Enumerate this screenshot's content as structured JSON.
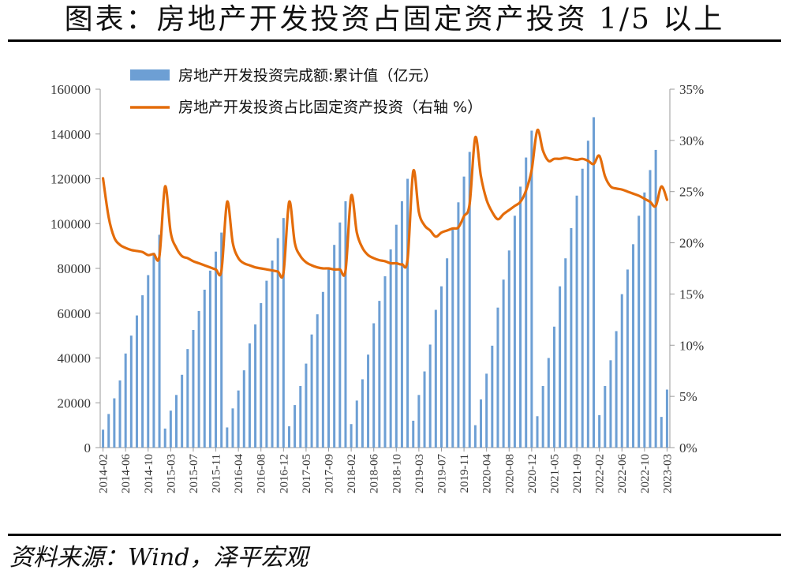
{
  "header": {
    "title": "图表：房地产开发投资占固定资产投资 1/5 以上"
  },
  "footer": {
    "source": "资料来源：Wind，泽平宏观"
  },
  "colors": {
    "bar": "#6d9fd4",
    "line": "#e46c0a",
    "rule": "#000000"
  },
  "chart_data": {
    "type": "bar",
    "legend": [
      "房地产开发投资完成额:累计值（亿元）",
      "房地产开发投资占比固定资产投资（右轴 %）"
    ],
    "legend_position": "top",
    "x_tick_labels": [
      "2014-02",
      "2014-06",
      "2014-10",
      "2015-03",
      "2015-07",
      "2015-11",
      "2016-04",
      "2016-08",
      "2016-12",
      "2017-05",
      "2017-09",
      "2018-02",
      "2018-06",
      "2018-10",
      "2019-03",
      "2019-07",
      "2019-11",
      "2020-04",
      "2020-08",
      "2020-12",
      "2021-05",
      "2021-09",
      "2022-02",
      "2022-06",
      "2022-10",
      "2023-03"
    ],
    "y_left": {
      "ylim": [
        0,
        160000
      ],
      "ticks": [
        "0",
        "20000",
        "40000",
        "60000",
        "80000",
        "100000",
        "120000",
        "140000",
        "160000"
      ]
    },
    "y_right": {
      "ylim": [
        0,
        35
      ],
      "ticks": [
        "0%",
        "5%",
        "10%",
        "15%",
        "20%",
        "25%",
        "30%",
        "35%"
      ]
    },
    "years": [
      {
        "year": "2014",
        "months": [
          2,
          3,
          4,
          5,
          6,
          7,
          8,
          9,
          10,
          11,
          12
        ],
        "bars": [
          8000,
          15000,
          22000,
          30000,
          42000,
          50000,
          59000,
          68000,
          77000,
          87000,
          95000
        ],
        "share": [
          26.3,
          22.5,
          20.5,
          19.8,
          19.5,
          19.3,
          19.2,
          19.1,
          18.8,
          18.9,
          18.7
        ]
      },
      {
        "year": "2015",
        "months": [
          2,
          3,
          4,
          5,
          6,
          7,
          8,
          9,
          10,
          11,
          12
        ],
        "bars": [
          8500,
          16500,
          23500,
          32500,
          44000,
          52500,
          61000,
          70500,
          79000,
          87500,
          96000
        ],
        "share": [
          25.5,
          21.0,
          19.5,
          18.7,
          18.5,
          18.2,
          18.0,
          17.8,
          17.6,
          17.4,
          17.3
        ]
      },
      {
        "year": "2016",
        "months": [
          2,
          3,
          4,
          5,
          6,
          7,
          8,
          9,
          10,
          11,
          12
        ],
        "bars": [
          9000,
          17500,
          25500,
          34500,
          46500,
          55000,
          64500,
          74500,
          83500,
          93500,
          102500
        ],
        "share": [
          24.0,
          20.0,
          18.5,
          18.0,
          17.8,
          17.6,
          17.5,
          17.4,
          17.3,
          17.2,
          17.1
        ]
      },
      {
        "year": "2017",
        "months": [
          2,
          3,
          4,
          5,
          6,
          7,
          8,
          9,
          10,
          11,
          12
        ],
        "bars": [
          9500,
          19000,
          27500,
          37500,
          50500,
          59500,
          69500,
          80500,
          90500,
          100500,
          110000
        ],
        "share": [
          24.0,
          20.0,
          18.7,
          18.1,
          17.8,
          17.6,
          17.5,
          17.5,
          17.4,
          17.4,
          17.3
        ]
      },
      {
        "year": "2018",
        "months": [
          2,
          3,
          4,
          5,
          6,
          7,
          8,
          9,
          10,
          11,
          12
        ],
        "bars": [
          10500,
          21000,
          30500,
          41500,
          55500,
          65500,
          76500,
          88500,
          99500,
          110000,
          120000
        ],
        "share": [
          24.6,
          21.0,
          19.5,
          18.8,
          18.5,
          18.3,
          18.2,
          18.0,
          18.0,
          17.9,
          18.4
        ]
      },
      {
        "year": "2019",
        "months": [
          2,
          3,
          4,
          5,
          6,
          7,
          8,
          9,
          10,
          11,
          12
        ],
        "bars": [
          12000,
          23500,
          34000,
          46000,
          61500,
          72000,
          84500,
          98000,
          109500,
          121000,
          132000
        ],
        "share": [
          27.0,
          23.0,
          21.7,
          21.2,
          20.6,
          21.0,
          21.2,
          21.4,
          21.5,
          22.6,
          23.8
        ]
      },
      {
        "year": "2020",
        "months": [
          2,
          3,
          4,
          5,
          6,
          7,
          8,
          9,
          10,
          11,
          12
        ],
        "bars": [
          10000,
          21500,
          33000,
          45500,
          62500,
          75000,
          88000,
          103500,
          116500,
          129500,
          141500
        ],
        "share": [
          30.3,
          26.5,
          24.2,
          23.0,
          22.3,
          22.8,
          23.2,
          23.6,
          24.0,
          25.1,
          27.1
        ]
      },
      {
        "year": "2021",
        "months": [
          2,
          3,
          4,
          5,
          6,
          7,
          8,
          9,
          10,
          11,
          12
        ],
        "bars": [
          14000,
          27500,
          40000,
          54000,
          72000,
          84500,
          98000,
          112500,
          124500,
          137000,
          147500
        ],
        "share": [
          31.0,
          29.0,
          28.0,
          28.2,
          28.2,
          28.3,
          28.2,
          28.1,
          28.2,
          28.0,
          27.7
        ]
      },
      {
        "year": "2022",
        "months": [
          2,
          3,
          4,
          5,
          6,
          7,
          8,
          9,
          10,
          11,
          12
        ],
        "bars": [
          14500,
          27500,
          39000,
          52000,
          68500,
          79500,
          90800,
          103500,
          113900,
          123900,
          132900
        ],
        "share": [
          28.5,
          26.5,
          25.5,
          25.3,
          25.2,
          25.0,
          24.8,
          24.6,
          24.3,
          24.0,
          23.6
        ]
      },
      {
        "year": "2023",
        "months": [
          2,
          3
        ],
        "bars": [
          13700,
          25900
        ],
        "share": [
          25.5,
          24.2
        ]
      }
    ]
  }
}
